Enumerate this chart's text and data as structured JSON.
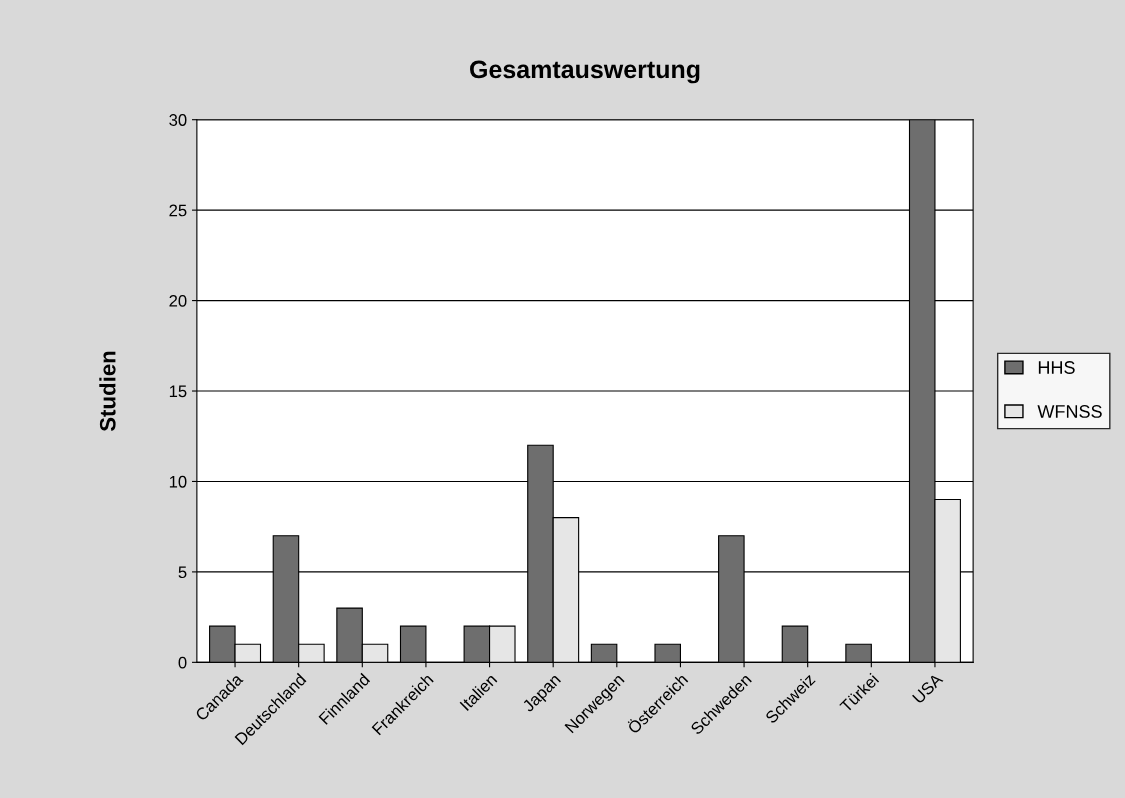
{
  "chart_data": {
    "type": "bar",
    "title": "Gesamtauswertung",
    "ylabel": "Studien",
    "categories": [
      "Canada",
      "Deutschland",
      "Finnland",
      "Frankreich",
      "Italien",
      "Japan",
      "Norwegen",
      "Österreich",
      "Schweden",
      "Schweiz",
      "Türkei",
      "USA"
    ],
    "series": [
      {
        "name": "HHS",
        "color": "#6e6e6e",
        "values": [
          2,
          7,
          3,
          2,
          2,
          12,
          1,
          1,
          7,
          2,
          1,
          30
        ]
      },
      {
        "name": "WFNSS",
        "color": "#e6e6e6",
        "values": [
          1,
          1,
          1,
          0,
          2,
          8,
          0,
          0,
          0,
          0,
          0,
          9
        ]
      }
    ],
    "ylim": [
      0,
      30
    ],
    "yticks": [
      0,
      5,
      10,
      15,
      20,
      25,
      30
    ],
    "grid": "y",
    "legend": "right"
  }
}
